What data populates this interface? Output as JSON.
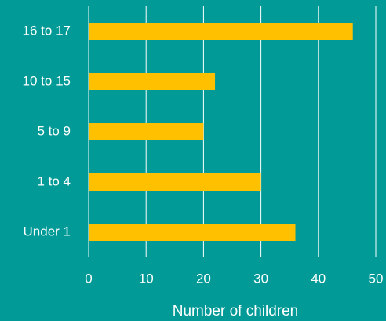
{
  "colors": {
    "background": "#019A97",
    "bar": "#FFC000",
    "gridline": "#FFFFFF",
    "text": "#FFFFFF"
  },
  "chart_data": {
    "type": "bar",
    "orientation": "horizontal",
    "categories": [
      "16 to 17",
      "10 to 15",
      "5 to 9",
      "1 to 4",
      "Under 1"
    ],
    "values": [
      46,
      22,
      20,
      30,
      36
    ],
    "xlabel": "Number of children",
    "ylabel": "",
    "xlim": [
      0,
      50
    ],
    "xticks": [
      0,
      10,
      20,
      30,
      40,
      50
    ],
    "grid": "vertical",
    "legend": "none"
  }
}
